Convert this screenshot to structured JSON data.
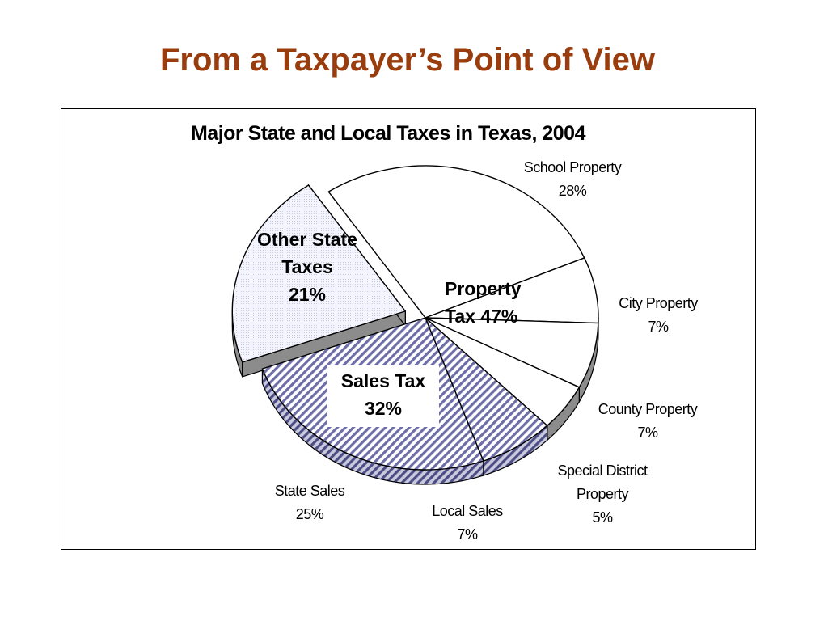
{
  "slide": {
    "title": "From a Taxpayer’s Point of View"
  },
  "chart_data": {
    "type": "pie",
    "title": "Major State and Local Taxes in Texas, 2004",
    "slices": [
      {
        "name": "School Property",
        "value": 28,
        "label_lines": [
          "School Property",
          "28%"
        ],
        "fill": "#ffffff",
        "group": "property"
      },
      {
        "name": "City Property",
        "value": 7,
        "label_lines": [
          "City Property",
          "7%"
        ],
        "fill": "#ffffff",
        "group": "property"
      },
      {
        "name": "County Property",
        "value": 7,
        "label_lines": [
          "County Property",
          "7%"
        ],
        "fill": "#ffffff",
        "group": "property"
      },
      {
        "name": "Special District Property",
        "value": 5,
        "label_lines": [
          "Special District",
          "Property",
          "5%"
        ],
        "fill": "#ffffff",
        "group": "property"
      },
      {
        "name": "Local Sales",
        "value": 7,
        "label_lines": [
          "Local Sales",
          "7%"
        ],
        "fill": "hatch",
        "group": "sales"
      },
      {
        "name": "State Sales",
        "value": 25,
        "label_lines": [
          "State Sales",
          "25%"
        ],
        "fill": "hatch",
        "group": "sales"
      },
      {
        "name": "Other State Taxes",
        "value": 21,
        "label_lines": [],
        "fill": "dots",
        "group": "other",
        "exploded": true
      }
    ],
    "groups": {
      "property": {
        "lines": [
          "Property",
          "Tax 47%"
        ]
      },
      "sales": {
        "lines": [
          "Sales Tax",
          "32%"
        ]
      },
      "other": {
        "lines": [
          "Other State",
          "Taxes",
          "21%"
        ]
      }
    },
    "colors": {
      "hatch": "#6d6da8",
      "dots": "#ededfa",
      "side": "#8c8c8c",
      "outline": "#000000"
    }
  }
}
